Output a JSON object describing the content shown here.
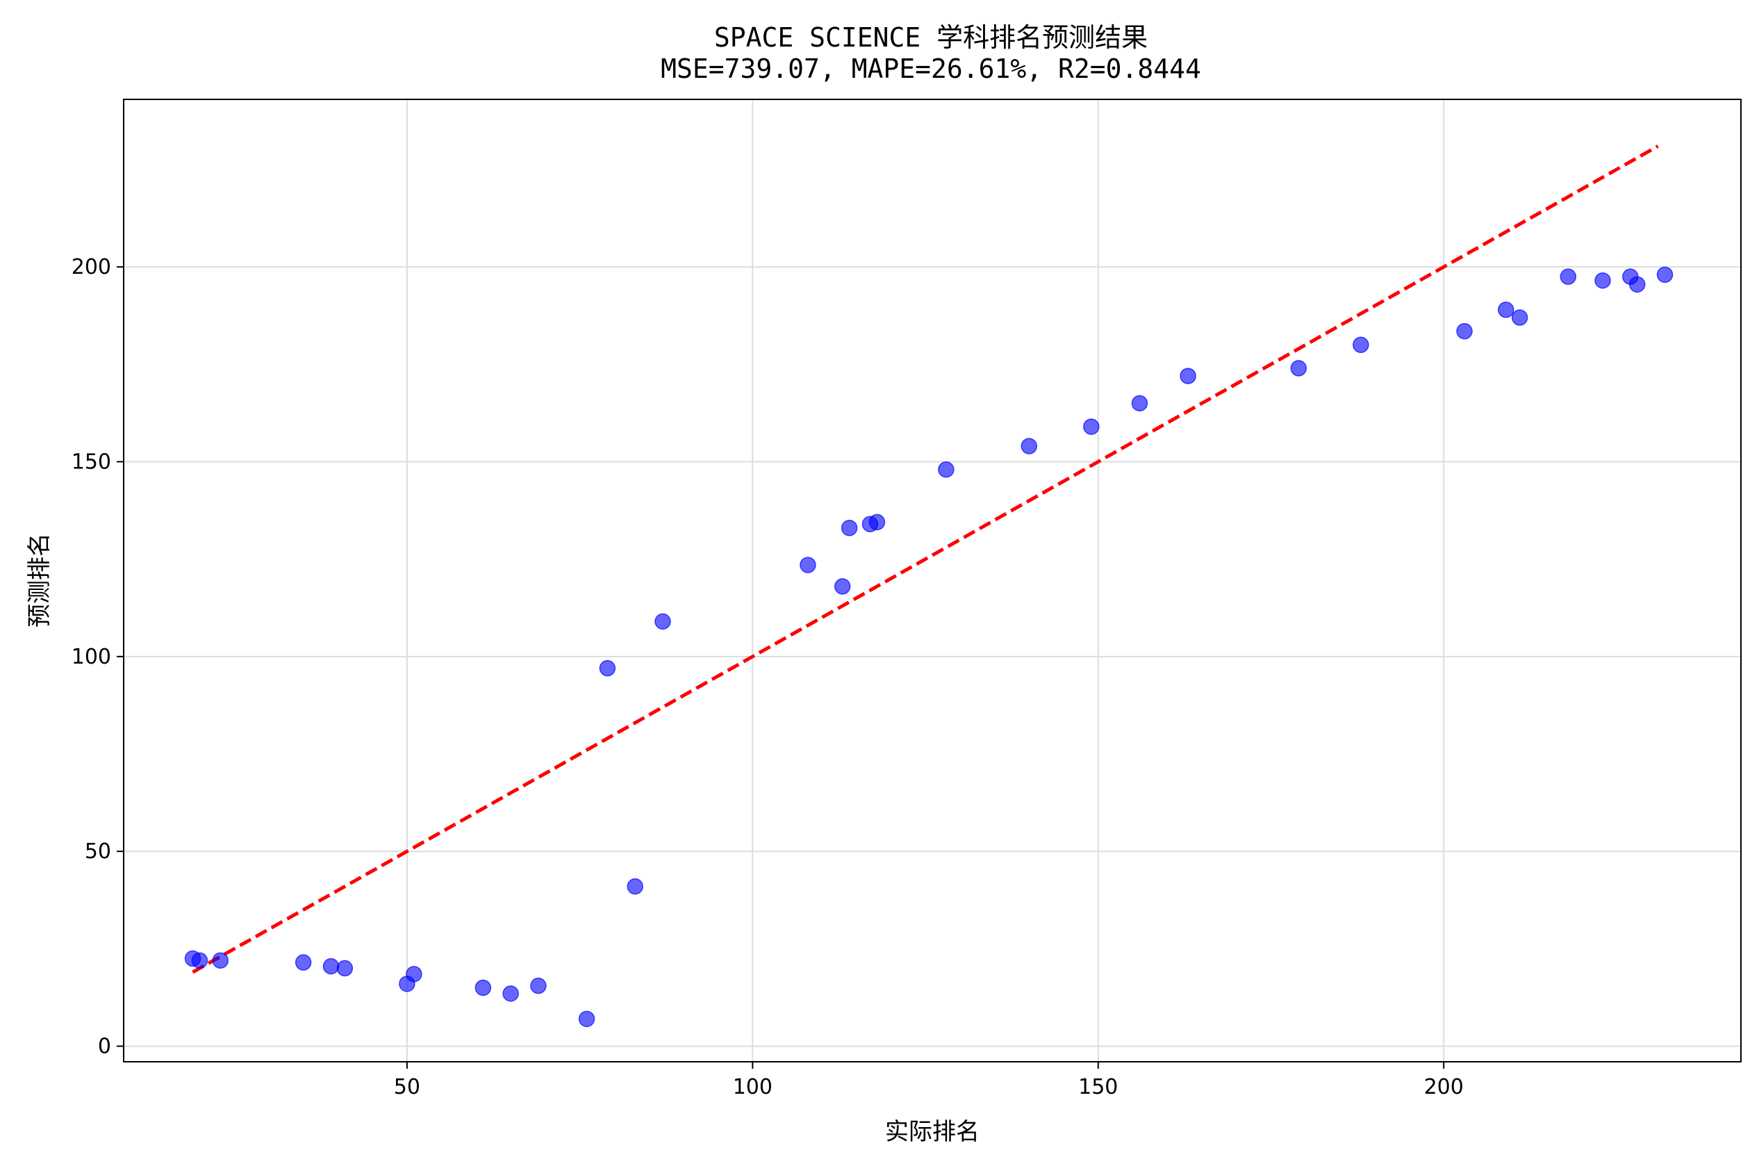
{
  "chart_data": {
    "type": "scatter",
    "title": "SPACE SCIENCE 学科排名预测结果",
    "subtitle": "MSE=739.07, MAPE=26.61%, R2=0.8444",
    "xlabel": "实际排名",
    "ylabel": "预测排名",
    "xlim": [
      9,
      243
    ],
    "ylim": [
      -4,
      243
    ],
    "xticks": [
      50,
      100,
      150,
      200
    ],
    "yticks": [
      0,
      50,
      100,
      150,
      200
    ],
    "grid": true,
    "point_color": "#0000ff",
    "line_color": "#ff0000",
    "reference_line": {
      "x": [
        19,
        231
      ],
      "y": [
        19,
        231
      ],
      "style": "dashed"
    },
    "points": {
      "x": [
        19,
        20,
        23,
        35,
        39,
        41,
        50,
        51,
        61,
        65,
        69,
        76,
        79,
        83,
        87,
        108,
        113,
        114,
        117,
        118,
        128,
        140,
        149,
        156,
        163,
        179,
        188,
        203,
        209,
        211,
        218,
        223,
        227,
        228,
        232
      ],
      "y": [
        22.5,
        22,
        22,
        21.5,
        20.5,
        20,
        16,
        18.5,
        15,
        13.5,
        15.5,
        7,
        97,
        41,
        109,
        123.5,
        118,
        133,
        134,
        134.5,
        148,
        154,
        159,
        165,
        172,
        174,
        180,
        183.5,
        189,
        187,
        197.5,
        196.5,
        197.5,
        195.5,
        198
      ]
    }
  }
}
